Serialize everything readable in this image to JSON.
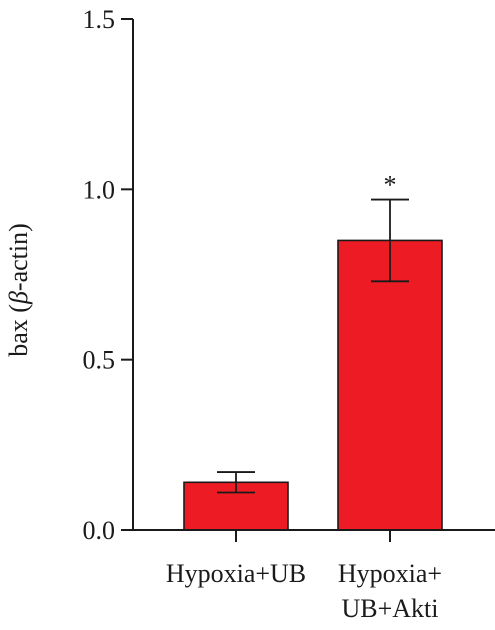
{
  "chart_data": {
    "type": "bar",
    "categories": [
      [
        "Hypoxia+UB"
      ],
      [
        "Hypoxia+",
        "UB+Akti"
      ]
    ],
    "values": [
      0.14,
      0.85
    ],
    "error": [
      0.03,
      0.12
    ],
    "significance": [
      "",
      "*"
    ],
    "ylabel": {
      "prefix": "bax (",
      "symbol": "β",
      "suffix": "-actin)"
    },
    "ylim": [
      0,
      1.5
    ],
    "yticks": [
      "0.0",
      "0.5",
      "1.0",
      "1.5"
    ],
    "grid": false,
    "bar_color": "#ed1c24",
    "axis_color": "#1a1a1a"
  }
}
